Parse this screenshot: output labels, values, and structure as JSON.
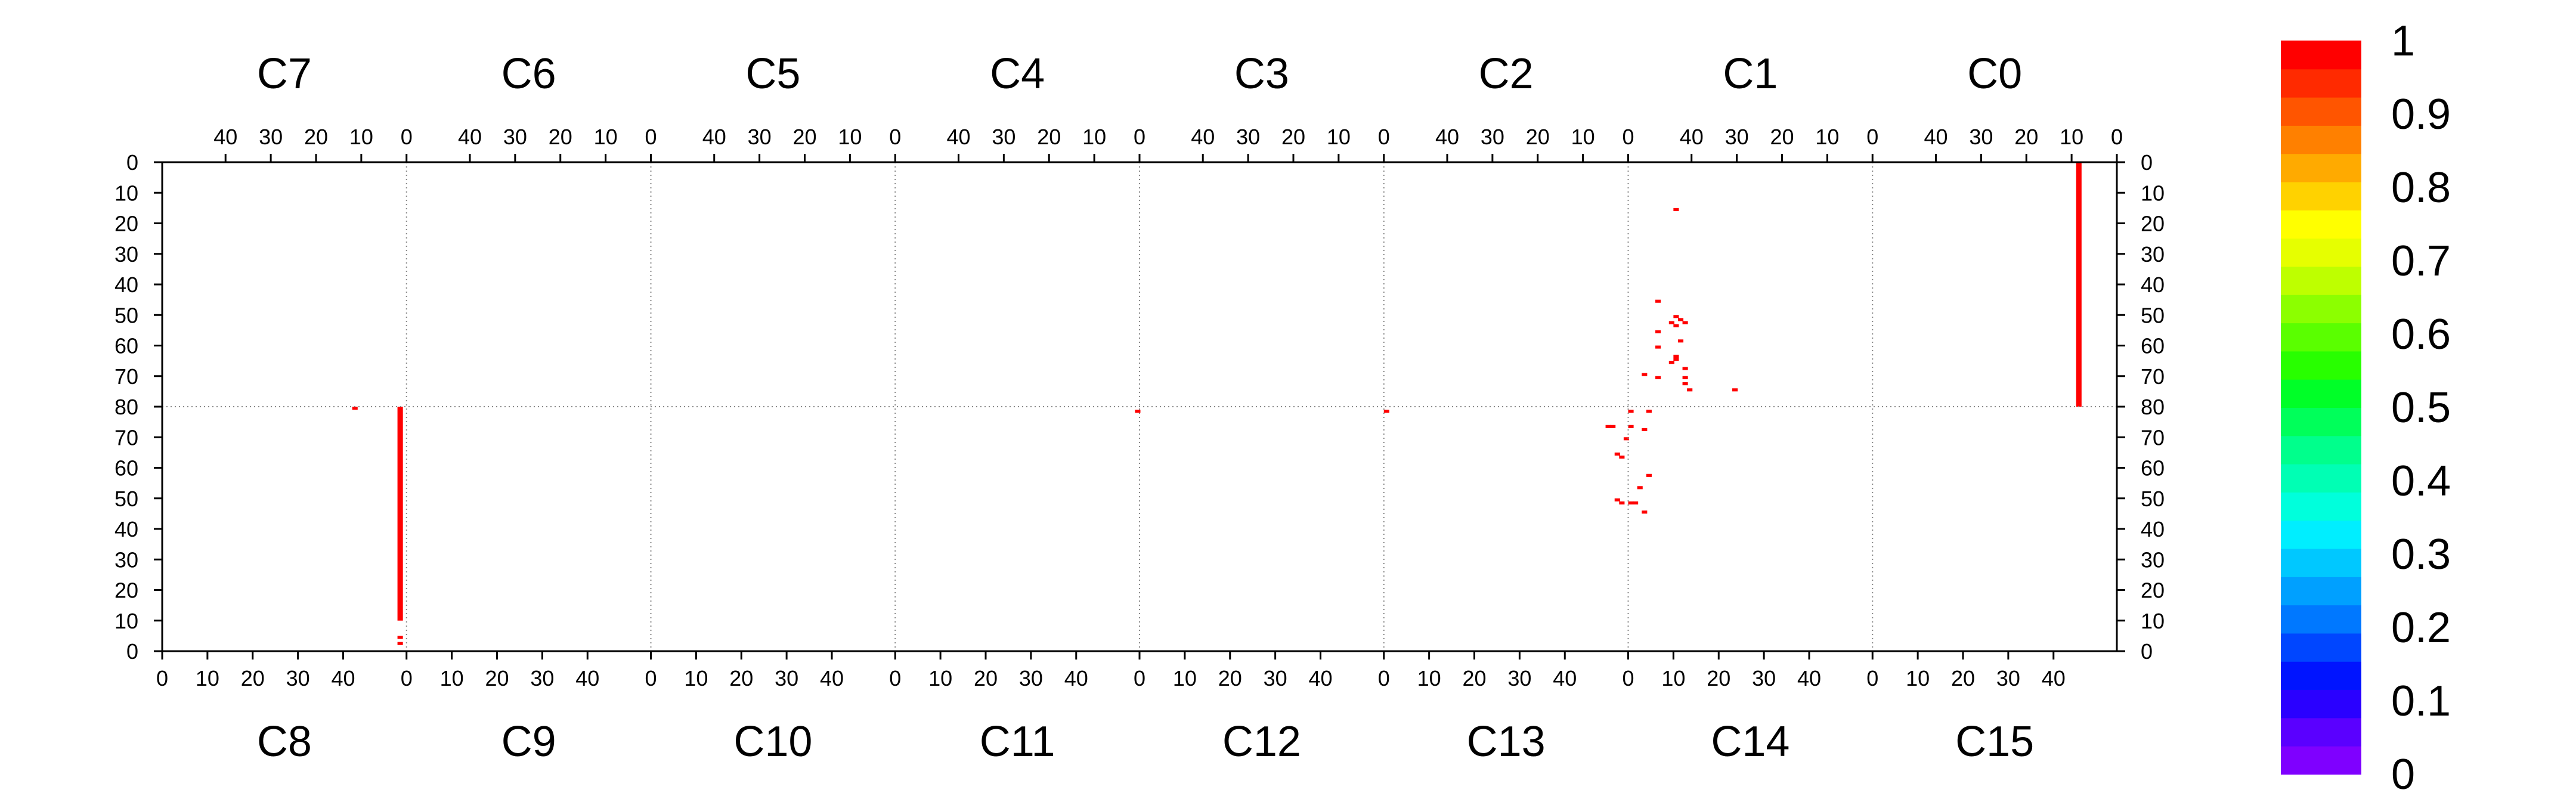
{
  "chart_data": {
    "type": "heatmap",
    "title": "",
    "top_row": {
      "channels": [
        "C7",
        "C6",
        "C5",
        "C4",
        "C3",
        "C2",
        "C1",
        "C0"
      ],
      "x_ticks": [
        40,
        30,
        20,
        10,
        0
      ],
      "x_direction": "descending",
      "y_range": [
        0,
        80
      ],
      "y_direction": "down"
    },
    "bottom_row": {
      "channels": [
        "C8",
        "C9",
        "C10",
        "C11",
        "C12",
        "C13",
        "C14",
        "C15"
      ],
      "x_ticks": [
        0,
        10,
        20,
        30,
        40
      ],
      "x_direction": "ascending",
      "y_range": [
        0,
        80
      ],
      "y_direction": "up"
    },
    "y_ticks_top": [
      "0",
      "10",
      "20",
      "30",
      "40",
      "50",
      "60",
      "70",
      "80"
    ],
    "y_ticks_bottom": [
      "80",
      "70",
      "60",
      "50",
      "40",
      "30",
      "20",
      "10",
      "0"
    ],
    "x_ticks_top_labels": [
      "40",
      "30",
      "20",
      "10",
      "0"
    ],
    "x_ticks_bottom_labels": [
      "0",
      "10",
      "20",
      "30",
      "40"
    ],
    "x_range_per_channel": [
      0,
      54
    ],
    "grid": "dotted channel boundaries",
    "colorbar": {
      "ticks": [
        "0",
        "0.1",
        "0.2",
        "0.3",
        "0.4",
        "0.5",
        "0.6",
        "0.7",
        "0.8",
        "0.9",
        "1"
      ],
      "range": [
        0,
        1
      ],
      "colors": [
        "#7f00ff",
        "#5a00ff",
        "#2a00ff",
        "#0014ff",
        "#0046ff",
        "#0078ff",
        "#00a0ff",
        "#00c8ff",
        "#00eeff",
        "#00ffdc",
        "#00ffb4",
        "#00ff8c",
        "#00ff5a",
        "#00ff28",
        "#28ff00",
        "#5aff00",
        "#8cff00",
        "#beff00",
        "#e6ff00",
        "#ffff00",
        "#ffd200",
        "#ffaa00",
        "#ff8000",
        "#ff5500",
        "#ff2a00",
        "#ff0000"
      ]
    },
    "cell_value": 1,
    "cell_color": "#ff0000",
    "cells_top": [
      {
        "channel": "C0",
        "x": 8,
        "y0": 0,
        "y1": 80
      },
      {
        "channel": "C1",
        "x": 43,
        "y0": 15,
        "y1": 16
      },
      {
        "channel": "C1",
        "x": 47,
        "y0": 45,
        "y1": 46
      },
      {
        "channel": "C1",
        "x": 43,
        "y0": 50,
        "y1": 51
      },
      {
        "channel": "C1",
        "x": 42,
        "y0": 51,
        "y1": 52
      },
      {
        "channel": "C1",
        "x": 41,
        "y0": 52,
        "y1": 53
      },
      {
        "channel": "C1",
        "x": 44,
        "y0": 52,
        "y1": 53
      },
      {
        "channel": "C1",
        "x": 43,
        "y0": 53,
        "y1": 54
      },
      {
        "channel": "C1",
        "x": 47,
        "y0": 55,
        "y1": 56
      },
      {
        "channel": "C1",
        "x": 42,
        "y0": 58,
        "y1": 59
      },
      {
        "channel": "C1",
        "x": 47,
        "y0": 60,
        "y1": 61
      },
      {
        "channel": "C1",
        "x": 43,
        "y0": 63,
        "y1": 64
      },
      {
        "channel": "C1",
        "x": 43,
        "y0": 64,
        "y1": 65
      },
      {
        "channel": "C1",
        "x": 44,
        "y0": 65,
        "y1": 66
      },
      {
        "channel": "C1",
        "x": 41,
        "y0": 67,
        "y1": 68
      },
      {
        "channel": "C1",
        "x": 50,
        "y0": 69,
        "y1": 70
      },
      {
        "channel": "C1",
        "x": 41,
        "y0": 70,
        "y1": 71
      },
      {
        "channel": "C1",
        "x": 47,
        "y0": 70,
        "y1": 71
      },
      {
        "channel": "C1",
        "x": 41,
        "y0": 72,
        "y1": 73
      },
      {
        "channel": "C1",
        "x": 40,
        "y0": 74,
        "y1": 75
      },
      {
        "channel": "C1",
        "x": 30,
        "y0": 74,
        "y1": 75
      }
    ],
    "cells_bottom": [
      {
        "channel": "C8",
        "x": 42,
        "y0": 79,
        "y1": 80
      },
      {
        "channel": "C8",
        "x": 52,
        "y0": 10,
        "y1": 80
      },
      {
        "channel": "C8",
        "x": 52,
        "y0": 2,
        "y1": 3
      },
      {
        "channel": "C8",
        "x": 52,
        "y0": 4,
        "y1": 5
      },
      {
        "channel": "C11",
        "x": 53,
        "y0": 78,
        "y1": 79
      },
      {
        "channel": "C13",
        "x": 0,
        "y0": 78,
        "y1": 79
      },
      {
        "channel": "C13",
        "x": 49,
        "y0": 73,
        "y1": 74
      },
      {
        "channel": "C13",
        "x": 50,
        "y0": 73,
        "y1": 74
      },
      {
        "channel": "C13",
        "x": 51,
        "y0": 64,
        "y1": 65
      },
      {
        "channel": "C13",
        "x": 52,
        "y0": 63,
        "y1": 64
      },
      {
        "channel": "C13",
        "x": 53,
        "y0": 69,
        "y1": 70
      },
      {
        "channel": "C13",
        "x": 54,
        "y0": 73,
        "y1": 74
      },
      {
        "channel": "C13",
        "x": 51,
        "y0": 49,
        "y1": 50
      },
      {
        "channel": "C13",
        "x": 52,
        "y0": 48,
        "y1": 49
      },
      {
        "channel": "C14",
        "x": 0,
        "y0": 78,
        "y1": 79
      },
      {
        "channel": "C14",
        "x": 0,
        "y0": 48,
        "y1": 49
      },
      {
        "channel": "C14",
        "x": 1,
        "y0": 48,
        "y1": 49
      },
      {
        "channel": "C14",
        "x": 2,
        "y0": 53,
        "y1": 54
      },
      {
        "channel": "C14",
        "x": 3,
        "y0": 72,
        "y1": 73
      },
      {
        "channel": "C14",
        "x": 4,
        "y0": 57,
        "y1": 58
      },
      {
        "channel": "C14",
        "x": 3,
        "y0": 45,
        "y1": 46
      },
      {
        "channel": "C14",
        "x": 4,
        "y0": 78,
        "y1": 79
      }
    ]
  }
}
